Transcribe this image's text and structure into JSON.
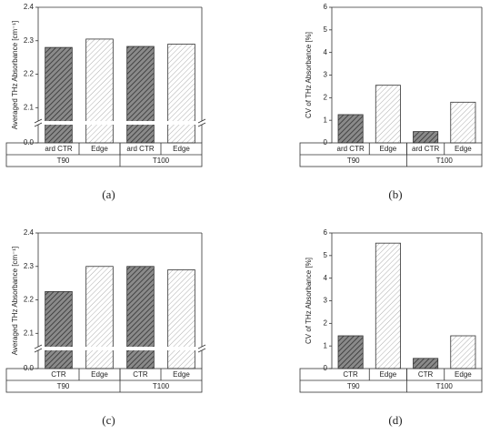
{
  "chart_data": [
    {
      "type": "bar",
      "caption": "(a)",
      "ylabel": "Averaged THz Absorbance [cm⁻¹]",
      "categories": [
        "ard CTR",
        "Edge",
        "ard CTR",
        "Edge"
      ],
      "groups": [
        "T90",
        "T100"
      ],
      "values": [
        2.28,
        2.305,
        2.283,
        2.29
      ],
      "bar_colors": [
        "#8a8a8a",
        "#ffffff",
        "#8a8a8a",
        "#ffffff"
      ],
      "ylim": [
        0,
        2.4
      ],
      "axis_break": [
        0.05,
        2.06
      ],
      "yticks": [
        {
          "value": 0,
          "label": "0.0"
        },
        2.1,
        2.2,
        2.3,
        2.4
      ]
    },
    {
      "type": "bar",
      "caption": "(b)",
      "ylabel": "CV of THz Absorbance [%]",
      "categories": [
        "ard CTR",
        "Edge",
        "ard CTR",
        "Edge"
      ],
      "groups": [
        "T90",
        "T100"
      ],
      "values": [
        1.25,
        2.55,
        0.5,
        1.8
      ],
      "bar_colors": [
        "#8a8a8a",
        "#ffffff",
        "#8a8a8a",
        "#ffffff"
      ],
      "ylim": [
        0,
        6
      ],
      "yticks": [
        0,
        1,
        2,
        3,
        4,
        5,
        6
      ]
    },
    {
      "type": "bar",
      "caption": "(c)",
      "ylabel": "Averaged THz Absorbance [cm⁻¹]",
      "categories": [
        "CTR",
        "Edge",
        "CTR",
        "Edge"
      ],
      "groups": [
        "T90",
        "T100"
      ],
      "values": [
        2.225,
        2.3,
        2.3,
        2.29
      ],
      "bar_colors": [
        "#8a8a8a",
        "#ffffff",
        "#8a8a8a",
        "#ffffff"
      ],
      "ylim": [
        0,
        2.4
      ],
      "axis_break": [
        0.05,
        2.06
      ],
      "yticks": [
        {
          "value": 0,
          "label": "0.0"
        },
        2.1,
        2.2,
        2.3,
        2.4
      ]
    },
    {
      "type": "bar",
      "caption": "(d)",
      "ylabel": "CV of THz Absorbance [%]",
      "categories": [
        "CTR",
        "Edge",
        "CTR",
        "Edge"
      ],
      "groups": [
        "T90",
        "T100"
      ],
      "values": [
        1.45,
        5.55,
        0.45,
        1.45
      ],
      "bar_colors": [
        "#8a8a8a",
        "#ffffff",
        "#8a8a8a",
        "#ffffff"
      ],
      "ylim": [
        0,
        6
      ],
      "yticks": [
        0,
        1,
        2,
        3,
        4,
        5,
        6
      ]
    }
  ]
}
